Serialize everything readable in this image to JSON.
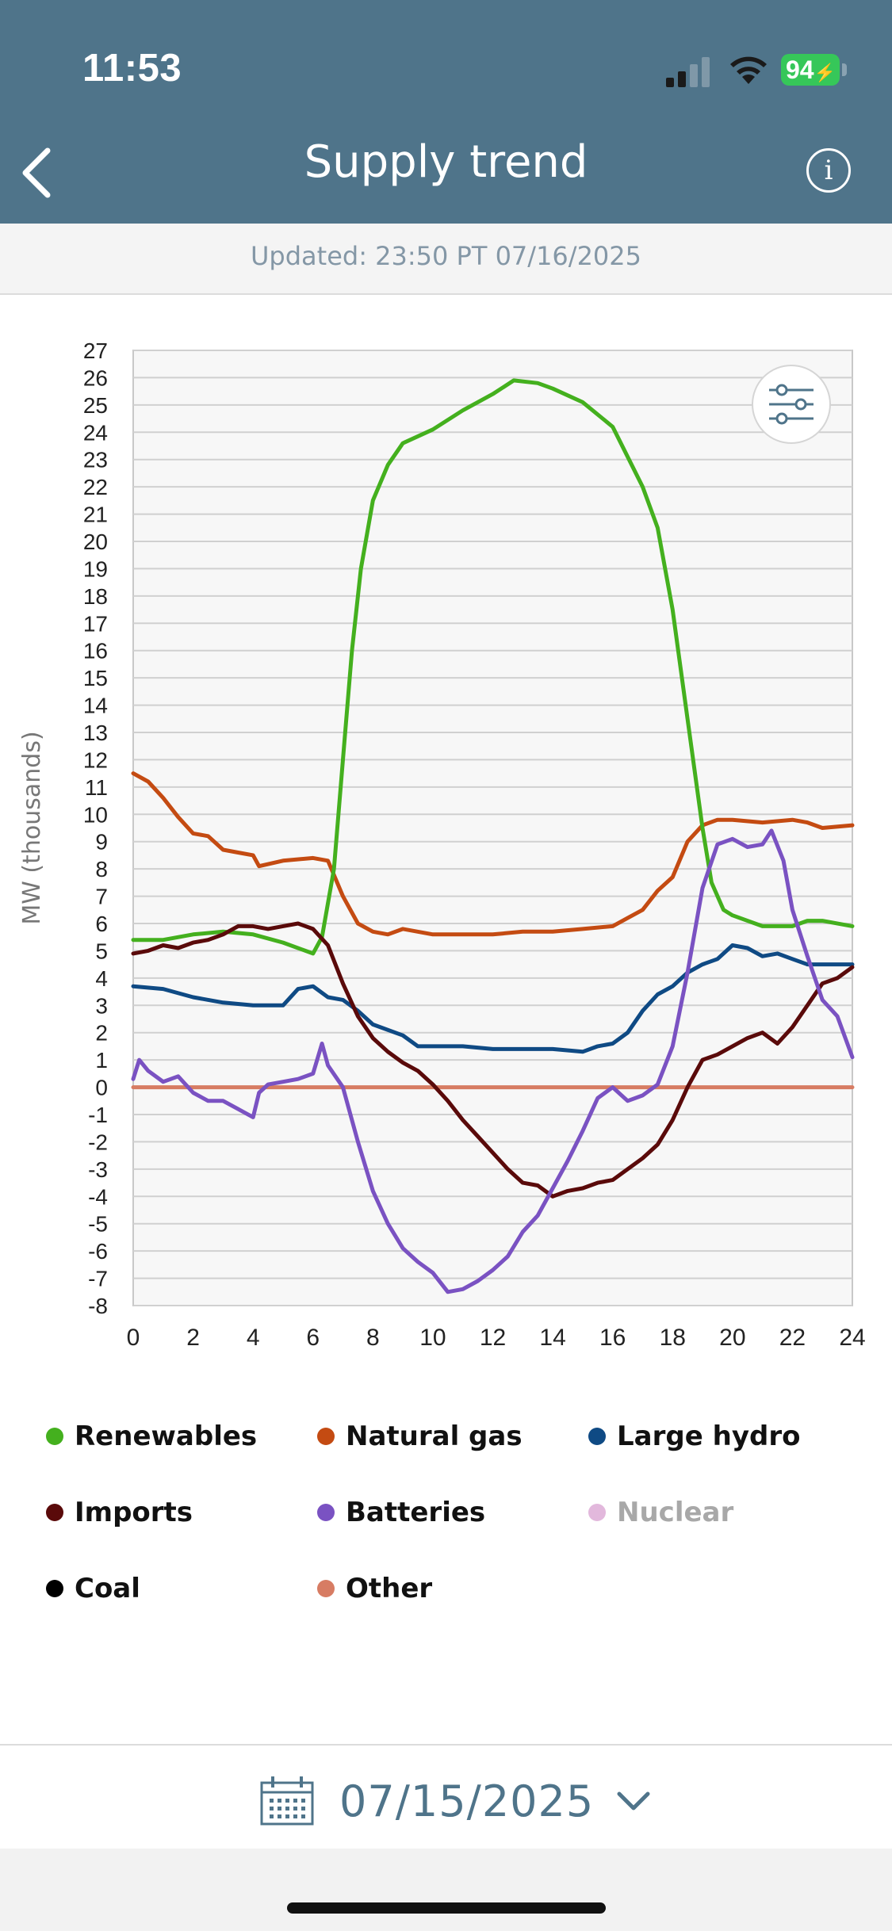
{
  "status_bar": {
    "time": "11:53",
    "battery": "94"
  },
  "header": {
    "title": "Supply trend",
    "back_icon": "chevron-left-icon",
    "info_icon": "info-icon",
    "info_glyph": "i"
  },
  "updated": "Updated: 23:50 PT 07/16/2025",
  "chart_data": {
    "type": "line",
    "ylabel": "MW (thousands)",
    "xlabel": "",
    "xlim": [
      0,
      24
    ],
    "ylim": [
      -8,
      27
    ],
    "x_ticks": [
      0,
      2,
      4,
      6,
      8,
      10,
      12,
      14,
      16,
      18,
      20,
      22,
      24
    ],
    "y_ticks": [
      -8,
      -7,
      -6,
      -5,
      -4,
      -3,
      -2,
      -1,
      0,
      1,
      2,
      3,
      4,
      5,
      6,
      7,
      8,
      9,
      10,
      11,
      12,
      13,
      14,
      15,
      16,
      17,
      18,
      19,
      20,
      21,
      22,
      23,
      24,
      25,
      26,
      27
    ],
    "grid": true,
    "series": [
      {
        "name": "Renewables",
        "color": "#44b01e",
        "points": [
          [
            0,
            5.4
          ],
          [
            1,
            5.4
          ],
          [
            2,
            5.6
          ],
          [
            3,
            5.7
          ],
          [
            4,
            5.6
          ],
          [
            5,
            5.3
          ],
          [
            6,
            4.9
          ],
          [
            6.3,
            5.5
          ],
          [
            6.7,
            8
          ],
          [
            7,
            12
          ],
          [
            7.3,
            16
          ],
          [
            7.6,
            19
          ],
          [
            8,
            21.5
          ],
          [
            8.5,
            22.8
          ],
          [
            9,
            23.6
          ],
          [
            10,
            24.1
          ],
          [
            11,
            24.8
          ],
          [
            12,
            25.4
          ],
          [
            12.7,
            25.9
          ],
          [
            13.5,
            25.8
          ],
          [
            14,
            25.6
          ],
          [
            15,
            25.1
          ],
          [
            16,
            24.2
          ],
          [
            17,
            22
          ],
          [
            17.5,
            20.5
          ],
          [
            18,
            17.5
          ],
          [
            18.5,
            13.5
          ],
          [
            19,
            9.5
          ],
          [
            19.3,
            7.5
          ],
          [
            19.7,
            6.5
          ],
          [
            20,
            6.3
          ],
          [
            21,
            5.9
          ],
          [
            22,
            5.9
          ],
          [
            22.5,
            6.1
          ],
          [
            23,
            6.1
          ],
          [
            24,
            5.9
          ]
        ]
      },
      {
        "name": "Natural gas",
        "color": "#c44b12",
        "points": [
          [
            0,
            11.5
          ],
          [
            0.5,
            11.2
          ],
          [
            1,
            10.6
          ],
          [
            1.5,
            9.9
          ],
          [
            2,
            9.3
          ],
          [
            2.5,
            9.2
          ],
          [
            3,
            8.7
          ],
          [
            3.5,
            8.6
          ],
          [
            4,
            8.5
          ],
          [
            4.2,
            8.1
          ],
          [
            5,
            8.3
          ],
          [
            6,
            8.4
          ],
          [
            6.5,
            8.3
          ],
          [
            7,
            7
          ],
          [
            7.5,
            6
          ],
          [
            8,
            5.7
          ],
          [
            8.5,
            5.6
          ],
          [
            9,
            5.8
          ],
          [
            10,
            5.6
          ],
          [
            11,
            5.6
          ],
          [
            12,
            5.6
          ],
          [
            13,
            5.7
          ],
          [
            14,
            5.7
          ],
          [
            15,
            5.8
          ],
          [
            16,
            5.9
          ],
          [
            16.5,
            6.2
          ],
          [
            17,
            6.5
          ],
          [
            17.5,
            7.2
          ],
          [
            18,
            7.7
          ],
          [
            18.5,
            9
          ],
          [
            19,
            9.6
          ],
          [
            19.5,
            9.8
          ],
          [
            20,
            9.8
          ],
          [
            21,
            9.7
          ],
          [
            22,
            9.8
          ],
          [
            22.5,
            9.7
          ],
          [
            23,
            9.5
          ],
          [
            24,
            9.6
          ]
        ]
      },
      {
        "name": "Large hydro",
        "color": "#0f4a84",
        "points": [
          [
            0,
            3.7
          ],
          [
            1,
            3.6
          ],
          [
            2,
            3.3
          ],
          [
            3,
            3.1
          ],
          [
            4,
            3
          ],
          [
            5,
            3
          ],
          [
            5.5,
            3.6
          ],
          [
            6,
            3.7
          ],
          [
            6.5,
            3.3
          ],
          [
            7,
            3.2
          ],
          [
            7.5,
            2.8
          ],
          [
            8,
            2.3
          ],
          [
            9,
            1.9
          ],
          [
            9.5,
            1.5
          ],
          [
            10,
            1.5
          ],
          [
            11,
            1.5
          ],
          [
            12,
            1.4
          ],
          [
            13,
            1.4
          ],
          [
            14,
            1.4
          ],
          [
            15,
            1.3
          ],
          [
            15.5,
            1.5
          ],
          [
            16,
            1.6
          ],
          [
            16.5,
            2
          ],
          [
            17,
            2.8
          ],
          [
            17.5,
            3.4
          ],
          [
            18,
            3.7
          ],
          [
            18.5,
            4.2
          ],
          [
            19,
            4.5
          ],
          [
            19.5,
            4.7
          ],
          [
            20,
            5.2
          ],
          [
            20.5,
            5.1
          ],
          [
            21,
            4.8
          ],
          [
            21.5,
            4.9
          ],
          [
            22,
            4.7
          ],
          [
            22.5,
            4.5
          ],
          [
            23,
            4.5
          ],
          [
            24,
            4.5
          ]
        ]
      },
      {
        "name": "Imports",
        "color": "#5a0a0a",
        "points": [
          [
            0,
            4.9
          ],
          [
            0.5,
            5
          ],
          [
            1,
            5.2
          ],
          [
            1.5,
            5.1
          ],
          [
            2,
            5.3
          ],
          [
            2.5,
            5.4
          ],
          [
            3,
            5.6
          ],
          [
            3.5,
            5.9
          ],
          [
            4,
            5.9
          ],
          [
            4.5,
            5.8
          ],
          [
            5,
            5.9
          ],
          [
            5.5,
            6
          ],
          [
            6,
            5.8
          ],
          [
            6.5,
            5.2
          ],
          [
            7,
            3.8
          ],
          [
            7.5,
            2.6
          ],
          [
            8,
            1.8
          ],
          [
            8.5,
            1.3
          ],
          [
            9,
            0.9
          ],
          [
            9.5,
            0.6
          ],
          [
            10,
            0.1
          ],
          [
            10.5,
            -0.5
          ],
          [
            11,
            -1.2
          ],
          [
            11.5,
            -1.8
          ],
          [
            12,
            -2.4
          ],
          [
            12.5,
            -3
          ],
          [
            13,
            -3.5
          ],
          [
            13.5,
            -3.6
          ],
          [
            14,
            -4
          ],
          [
            14.5,
            -3.8
          ],
          [
            15,
            -3.7
          ],
          [
            15.5,
            -3.5
          ],
          [
            16,
            -3.4
          ],
          [
            16.5,
            -3
          ],
          [
            17,
            -2.6
          ],
          [
            17.5,
            -2.1
          ],
          [
            18,
            -1.2
          ],
          [
            18.5,
            0
          ],
          [
            19,
            1
          ],
          [
            19.5,
            1.2
          ],
          [
            20,
            1.5
          ],
          [
            20.5,
            1.8
          ],
          [
            21,
            2
          ],
          [
            21.5,
            1.6
          ],
          [
            22,
            2.2
          ],
          [
            22.5,
            3
          ],
          [
            23,
            3.8
          ],
          [
            23.5,
            4
          ],
          [
            24,
            4.4
          ]
        ]
      },
      {
        "name": "Batteries",
        "color": "#7a52c2",
        "points": [
          [
            0,
            0.3
          ],
          [
            0.2,
            1
          ],
          [
            0.5,
            0.6
          ],
          [
            1,
            0.2
          ],
          [
            1.5,
            0.4
          ],
          [
            2,
            -0.2
          ],
          [
            2.5,
            -0.5
          ],
          [
            3,
            -0.5
          ],
          [
            3.5,
            -0.8
          ],
          [
            4,
            -1.1
          ],
          [
            4.2,
            -0.2
          ],
          [
            4.5,
            0.1
          ],
          [
            5,
            0.2
          ],
          [
            5.5,
            0.3
          ],
          [
            6,
            0.5
          ],
          [
            6.3,
            1.6
          ],
          [
            6.5,
            0.8
          ],
          [
            7,
            0
          ],
          [
            7.5,
            -2
          ],
          [
            8,
            -3.8
          ],
          [
            8.5,
            -5
          ],
          [
            9,
            -5.9
          ],
          [
            9.5,
            -6.4
          ],
          [
            10,
            -6.8
          ],
          [
            10.5,
            -7.5
          ],
          [
            11,
            -7.4
          ],
          [
            11.5,
            -7.1
          ],
          [
            12,
            -6.7
          ],
          [
            12.5,
            -6.2
          ],
          [
            13,
            -5.3
          ],
          [
            13.5,
            -4.7
          ],
          [
            14,
            -3.7
          ],
          [
            14.5,
            -2.7
          ],
          [
            15,
            -1.6
          ],
          [
            15.5,
            -0.4
          ],
          [
            16,
            0
          ],
          [
            16.5,
            -0.5
          ],
          [
            17,
            -0.3
          ],
          [
            17.5,
            0.1
          ],
          [
            18,
            1.5
          ],
          [
            18.5,
            4.2
          ],
          [
            19,
            7.3
          ],
          [
            19.5,
            8.9
          ],
          [
            20,
            9.1
          ],
          [
            20.5,
            8.8
          ],
          [
            21,
            8.9
          ],
          [
            21.3,
            9.4
          ],
          [
            21.7,
            8.3
          ],
          [
            22,
            6.5
          ],
          [
            22.5,
            4.8
          ],
          [
            23,
            3.2
          ],
          [
            23.5,
            2.6
          ],
          [
            24,
            1.1
          ]
        ]
      },
      {
        "name": "Nuclear",
        "color": "#e2b8dc",
        "points": []
      },
      {
        "name": "Coal",
        "color": "#000000",
        "points": []
      },
      {
        "name": "Other",
        "color": "#d77c63",
        "points": [
          [
            0,
            0
          ],
          [
            24,
            0
          ]
        ]
      }
    ]
  },
  "legend": [
    {
      "name": "Renewables",
      "color": "#44b01e",
      "muted": false
    },
    {
      "name": "Natural gas",
      "color": "#c44b12",
      "muted": false
    },
    {
      "name": "Large hydro",
      "color": "#0f4a84",
      "muted": false
    },
    {
      "name": "Imports",
      "color": "#5a0a0a",
      "muted": false
    },
    {
      "name": "Batteries",
      "color": "#7a52c2",
      "muted": false
    },
    {
      "name": "Nuclear",
      "color": "#e2b8dc",
      "muted": true
    },
    {
      "name": "Coal",
      "color": "#000000",
      "muted": false
    },
    {
      "name": "Other",
      "color": "#d77c63",
      "muted": false
    }
  ],
  "filter_icon": "sliders-icon",
  "date_picker": {
    "date": "07/15/2025",
    "calendar_icon": "calendar-icon",
    "chevron_icon": "chevron-down-icon"
  }
}
